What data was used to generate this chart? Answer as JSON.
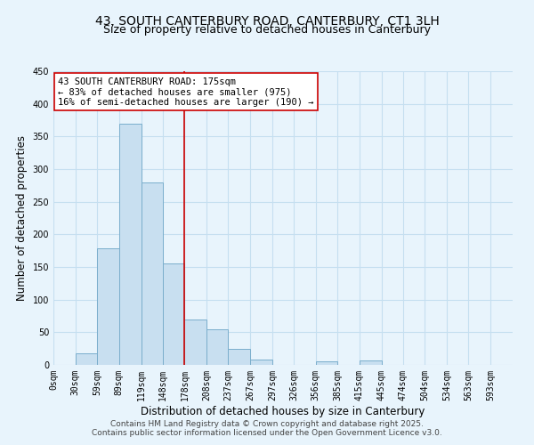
{
  "title": "43, SOUTH CANTERBURY ROAD, CANTERBURY, CT1 3LH",
  "subtitle": "Size of property relative to detached houses in Canterbury",
  "xlabel": "Distribution of detached houses by size in Canterbury",
  "ylabel": "Number of detached properties",
  "bin_labels": [
    "0sqm",
    "30sqm",
    "59sqm",
    "89sqm",
    "119sqm",
    "148sqm",
    "178sqm",
    "208sqm",
    "237sqm",
    "267sqm",
    "297sqm",
    "326sqm",
    "356sqm",
    "385sqm",
    "415sqm",
    "445sqm",
    "474sqm",
    "504sqm",
    "534sqm",
    "563sqm",
    "593sqm"
  ],
  "bin_edges": [
    0,
    30,
    59,
    89,
    119,
    148,
    178,
    208,
    237,
    267,
    297,
    326,
    356,
    385,
    415,
    445,
    474,
    504,
    534,
    563,
    593
  ],
  "bar_values": [
    0,
    18,
    178,
    370,
    280,
    155,
    70,
    55,
    24,
    8,
    0,
    0,
    6,
    0,
    7,
    0,
    0,
    0,
    0,
    0,
    0
  ],
  "bar_color": "#c8dff0",
  "bar_edge_color": "#7aaecc",
  "ylim": [
    0,
    450
  ],
  "yticks": [
    0,
    50,
    100,
    150,
    200,
    250,
    300,
    350,
    400,
    450
  ],
  "vline_x": 178,
  "vline_color": "#cc0000",
  "annotation_lines": [
    "43 SOUTH CANTERBURY ROAD: 175sqm",
    "← 83% of detached houses are smaller (975)",
    "16% of semi-detached houses are larger (190) →"
  ],
  "annotation_box_color": "#ffffff",
  "annotation_box_edge": "#cc0000",
  "footer_line1": "Contains HM Land Registry data © Crown copyright and database right 2025.",
  "footer_line2": "Contains public sector information licensed under the Open Government Licence v3.0.",
  "bg_color": "#e8f4fc",
  "grid_color": "#c5dff0",
  "title_fontsize": 10,
  "subtitle_fontsize": 9,
  "axis_label_fontsize": 8.5,
  "tick_fontsize": 7,
  "annotation_fontsize": 7.5,
  "footer_fontsize": 6.5
}
